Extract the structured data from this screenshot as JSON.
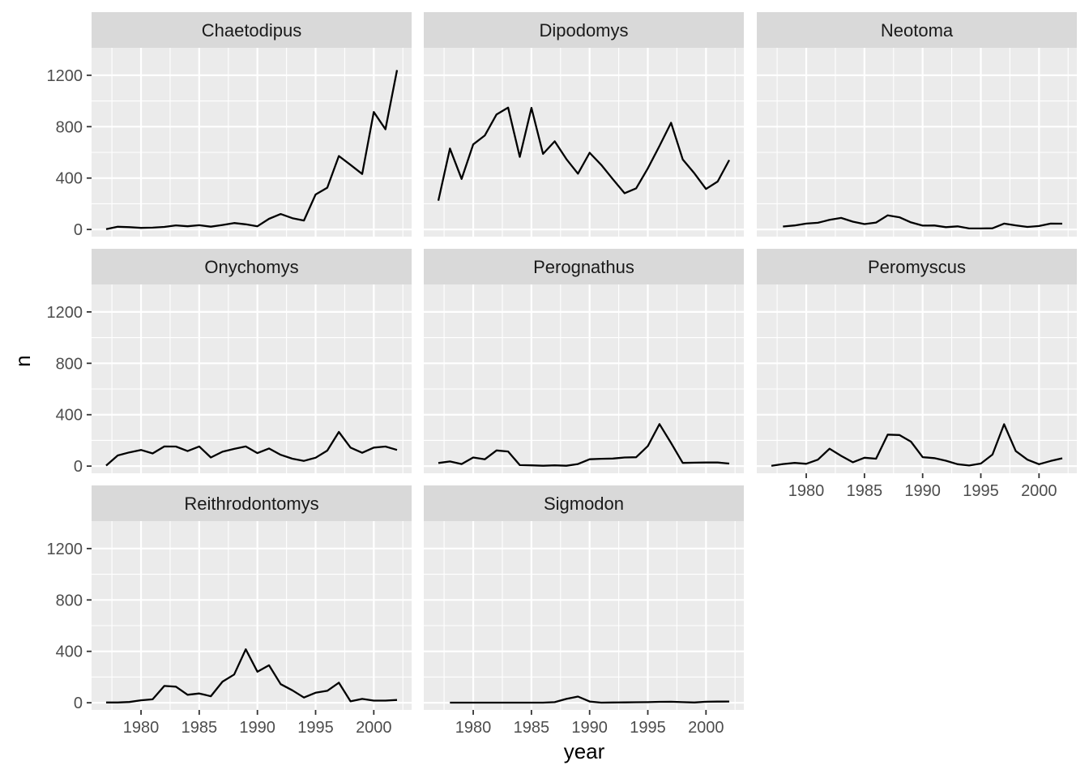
{
  "chart_data": {
    "type": "line",
    "xlabel": "year",
    "ylabel": "n",
    "xlim": [
      1977,
      2002
    ],
    "ylim": [
      0,
      1300
    ],
    "x_ticks": [
      1980,
      1985,
      1990,
      1995,
      2000
    ],
    "y_ticks": [
      0,
      400,
      800,
      1200
    ],
    "grid": true,
    "layout": "facet_wrap, 3 columns",
    "facets": [
      {
        "name": "Chaetodipus",
        "x": [
          1977,
          1978,
          1979,
          1980,
          1981,
          1982,
          1983,
          1984,
          1985,
          1986,
          1987,
          1988,
          1989,
          1990,
          1991,
          1992,
          1993,
          1994,
          1995,
          1996,
          1997,
          1998,
          1999,
          2000,
          2001,
          2002
        ],
        "values": [
          3,
          21,
          18,
          12,
          14,
          20,
          32,
          25,
          33,
          22,
          35,
          50,
          40,
          25,
          83,
          120,
          88,
          70,
          272,
          325,
          572,
          503,
          432,
          914,
          780,
          1240
        ]
      },
      {
        "name": "Dipodomys",
        "x": [
          1977,
          1978,
          1979,
          1980,
          1981,
          1982,
          1983,
          1984,
          1985,
          1986,
          1987,
          1988,
          1989,
          1990,
          1991,
          1992,
          1993,
          1994,
          1995,
          1996,
          1997,
          1998,
          1999,
          2000,
          2001,
          2002
        ],
        "values": [
          224,
          630,
          393,
          662,
          732,
          895,
          948,
          565,
          946,
          588,
          686,
          548,
          434,
          597,
          503,
          391,
          282,
          320,
          475,
          650,
          830,
          545,
          437,
          315,
          373,
          540
        ]
      },
      {
        "name": "Neotoma",
        "x": [
          1978,
          1979,
          1980,
          1981,
          1982,
          1983,
          1984,
          1985,
          1986,
          1987,
          1988,
          1989,
          1990,
          1991,
          1992,
          1993,
          1994,
          1995,
          1996,
          1997,
          1998,
          1999,
          2000,
          2001,
          2002
        ],
        "values": [
          23,
          31,
          46,
          52,
          75,
          90,
          61,
          42,
          54,
          110,
          95,
          55,
          30,
          31,
          18,
          24,
          8,
          8,
          9,
          46,
          32,
          20,
          27,
          46,
          45
        ]
      },
      {
        "name": "Onychomys",
        "x": [
          1977,
          1978,
          1979,
          1980,
          1981,
          1982,
          1983,
          1984,
          1985,
          1986,
          1987,
          1988,
          1989,
          1990,
          1991,
          1992,
          1993,
          1994,
          1995,
          1996,
          1997,
          1998,
          1999,
          2000,
          2001,
          2002
        ],
        "values": [
          4,
          83,
          107,
          126,
          99,
          153,
          152,
          117,
          153,
          67,
          112,
          134,
          153,
          101,
          137,
          88,
          58,
          41,
          65,
          121,
          266,
          144,
          104,
          144,
          152,
          126
        ]
      },
      {
        "name": "Perognathus",
        "x": [
          1977,
          1978,
          1979,
          1980,
          1981,
          1982,
          1983,
          1984,
          1985,
          1986,
          1987,
          1988,
          1989,
          1990,
          1991,
          1992,
          1993,
          1994,
          1995,
          1996,
          1997,
          1998,
          1999,
          2000,
          2001,
          2002
        ],
        "values": [
          24,
          36,
          16,
          67,
          53,
          122,
          114,
          8,
          6,
          3,
          6,
          3,
          16,
          53,
          57,
          59,
          67,
          69,
          156,
          327,
          180,
          25,
          27,
          28,
          28,
          20
        ]
      },
      {
        "name": "Peromyscus",
        "x": [
          1977,
          1978,
          1979,
          1980,
          1981,
          1982,
          1983,
          1984,
          1985,
          1986,
          1987,
          1988,
          1989,
          1990,
          1991,
          1992,
          1993,
          1994,
          1995,
          1996,
          1997,
          1998,
          1999,
          2000,
          2001,
          2002
        ],
        "values": [
          2,
          16,
          25,
          18,
          50,
          135,
          80,
          30,
          65,
          58,
          245,
          242,
          190,
          70,
          62,
          42,
          15,
          5,
          20,
          90,
          326,
          117,
          50,
          15,
          40,
          61
        ]
      },
      {
        "name": "Reithrodontomys",
        "x": [
          1977,
          1978,
          1979,
          1980,
          1981,
          1982,
          1983,
          1984,
          1985,
          1986,
          1987,
          1988,
          1989,
          1990,
          1991,
          1992,
          1993,
          1994,
          1995,
          1996,
          1997,
          1998,
          1999,
          2000,
          2001,
          2002
        ],
        "values": [
          2,
          2,
          6,
          19,
          27,
          131,
          125,
          62,
          72,
          51,
          164,
          220,
          416,
          241,
          292,
          145,
          97,
          41,
          78,
          93,
          156,
          11,
          30,
          17,
          17,
          22
        ]
      },
      {
        "name": "Sigmodon",
        "x": [
          1978,
          1979,
          1980,
          1981,
          1982,
          1983,
          1984,
          1985,
          1986,
          1987,
          1988,
          1989,
          1990,
          1991,
          1992,
          1993,
          1994,
          1995,
          1996,
          1997,
          1998,
          1999,
          2000,
          2001,
          2002
        ],
        "values": [
          1,
          1,
          1,
          1,
          1,
          1,
          1,
          1,
          1,
          5,
          30,
          48,
          10,
          1,
          2,
          3,
          4,
          5,
          7,
          8,
          5,
          2,
          8,
          9,
          10
        ]
      }
    ]
  }
}
